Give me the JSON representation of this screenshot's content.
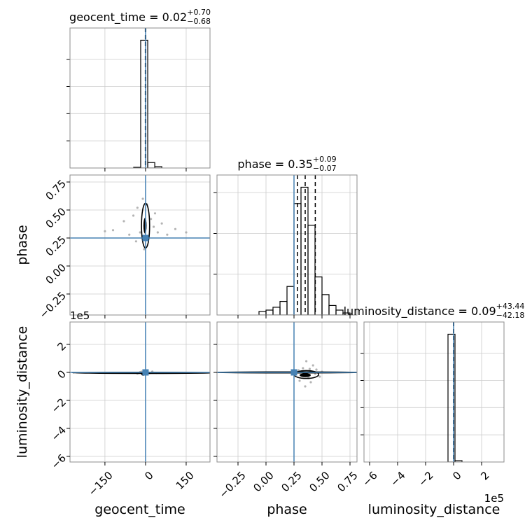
{
  "chart_data": {
    "type": "corner",
    "grid": true,
    "truth_color": "#4682b4",
    "quantile_color": "#000000",
    "hist_color": "#000000",
    "contour_color": "#000000",
    "point_color": "#b4b4b4",
    "offset_label": "1e5",
    "parameters": [
      {
        "name": "geocent_time",
        "lim": [
          -279,
          238
        ],
        "ticks": [
          {
            "value": -150,
            "label": "−150"
          },
          0,
          150
        ],
        "truth": 0,
        "title": "geocent_time = 0.02",
        "title_upper": "+0.70",
        "title_lower": "−0.68",
        "quantiles": [
          -0.66,
          0.02,
          0.72
        ],
        "bins": [
          -44,
          -18,
          8,
          34,
          60
        ],
        "counts": [
          0.005,
          0.94,
          0.04,
          0.01
        ],
        "hist_ylim": [
          0,
          1.03
        ],
        "hist_yticks": [
          0.2,
          0.4,
          0.6,
          0.8
        ]
      },
      {
        "name": "phase",
        "lim": [
          -0.4375,
          0.8125
        ],
        "ticks": [
          {
            "value": -0.25,
            "label": "−0.25"
          },
          {
            "value": 0,
            "label": "0.00"
          },
          {
            "value": 0.25,
            "label": "0.25"
          },
          {
            "value": 0.5,
            "label": "0.50"
          },
          {
            "value": 0.75,
            "label": "0.75"
          }
        ],
        "truth": 0.25,
        "title": "phase = 0.35",
        "title_upper": "+0.09",
        "title_lower": "−0.07",
        "quantiles": [
          0.28,
          0.35,
          0.44
        ],
        "bins": [
          -0.0625,
          0,
          0.0625,
          0.125,
          0.1875,
          0.25,
          0.3125,
          0.375,
          0.4375,
          0.5,
          0.5625,
          0.625,
          0.6875,
          0.75
        ],
        "counts": [
          0.026,
          0.036,
          0.057,
          0.1,
          0.21,
          0.82,
          0.94,
          0.66,
          0.28,
          0.15,
          0.07,
          0.036,
          0.015
        ],
        "hist_ylim": [
          0,
          1.03
        ],
        "hist_yticks": [
          0.3,
          0.6,
          0.9
        ]
      },
      {
        "name": "luminosity_distance",
        "lim": [
          -640000,
          360000
        ],
        "ticks": [
          {
            "value": -600000,
            "label": "−6"
          },
          {
            "value": -400000,
            "label": "−4"
          },
          {
            "value": -200000,
            "label": "−2"
          },
          0,
          {
            "value": 200000,
            "label": "2"
          }
        ],
        "truth": 0,
        "title": "luminosity_distance = 0.09",
        "title_upper": "+43.44",
        "title_lower": "−42.18",
        "quantiles": [
          -42.09,
          0.09,
          43.53
        ],
        "bins": [
          -40000,
          10000,
          60000
        ],
        "counts": [
          0.94,
          0.01
        ],
        "hist_ylim": [
          0,
          1.03
        ],
        "hist_yticks": [
          0.2,
          0.4,
          0.6,
          0.8
        ]
      }
    ],
    "pairs": [
      {
        "points": {
          "x": [
            -120,
            -80,
            -60,
            -45,
            -30,
            -20,
            -10,
            -5,
            5,
            10,
            20,
            30,
            45,
            60,
            80,
            110,
            150,
            -150,
            35,
            -35
          ],
          "y": [
            0.32,
            0.4,
            0.28,
            0.45,
            0.52,
            0.3,
            0.6,
            0.15,
            0.55,
            0.25,
            0.42,
            0.35,
            0.3,
            0.38,
            0.28,
            0.33,
            0.3,
            0.31,
            0.47,
            0.22
          ]
        },
        "contours": [
          {
            "x": 0,
            "y": 0.36,
            "rx": 15,
            "ry": 0.2
          }
        ],
        "core": {
          "x": -2,
          "y": 0.36,
          "rx": 6,
          "ry": 0.07
        }
      },
      {
        "points": {
          "x": [
            -30,
            -15,
            -8,
            8,
            15,
            25,
            -20,
            40
          ],
          "y": [
            -8000,
            5000,
            -15000,
            3000,
            -5000,
            6000,
            2000,
            -3000
          ]
        },
        "contours": [
          {
            "x": 0,
            "y": -3000,
            "rx": 270,
            "ry": 4000
          }
        ],
        "core": {
          "x": -8,
          "y": -12000,
          "rx": 8,
          "ry": 12000
        }
      },
      {
        "points": {
          "x": [
            0.3,
            0.38,
            0.42,
            0.45,
            0.48,
            0.33,
            0.36,
            0.4,
            0.44,
            0.29,
            0.35,
            0.5,
            0.39
          ],
          "y": [
            -60000,
            -40000,
            50000,
            20000,
            -30000,
            30000,
            80000,
            -70000,
            -10000,
            15000,
            -100000,
            5000,
            25000
          ]
        },
        "contours": [
          {
            "x": 0.36,
            "y": -15000,
            "rx": 0.11,
            "ry": 28000
          },
          {
            "x": 0.2,
            "y": 0,
            "rx": 0.7,
            "ry": 3500
          }
        ],
        "core": {
          "x": 0.35,
          "y": -20000,
          "rx": 0.05,
          "ry": 14000
        }
      }
    ]
  }
}
